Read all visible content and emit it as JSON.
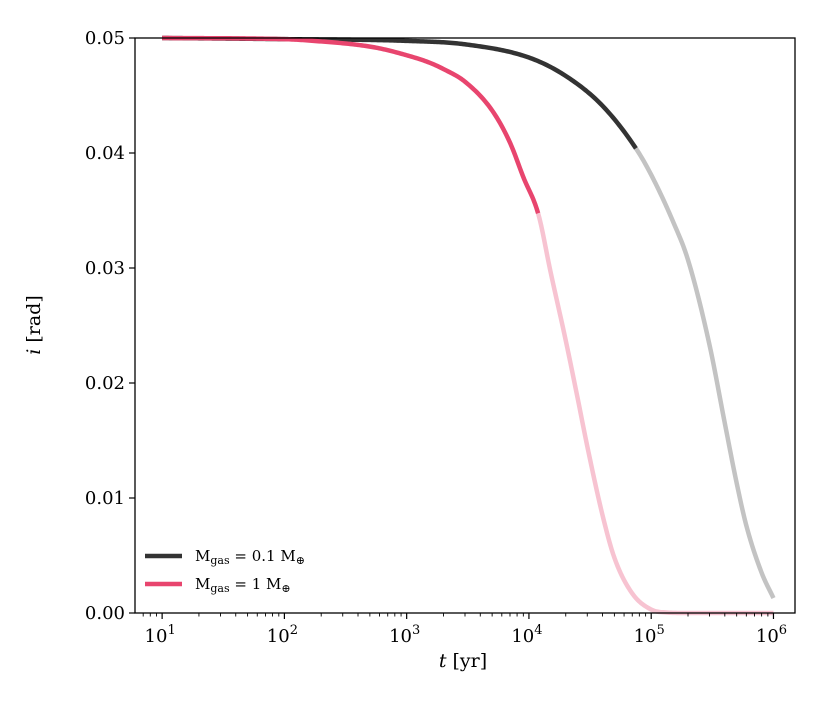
{
  "chart_data": {
    "type": "line",
    "xscale": "log",
    "xlim": [
      6,
      1500000
    ],
    "ylim": [
      0.0,
      0.05
    ],
    "x_ticks": [
      {
        "value": 10,
        "base": "10",
        "exp": "1"
      },
      {
        "value": 100,
        "base": "10",
        "exp": "2"
      },
      {
        "value": 1000,
        "base": "10",
        "exp": "3"
      },
      {
        "value": 10000,
        "base": "10",
        "exp": "4"
      },
      {
        "value": 100000,
        "base": "10",
        "exp": "5"
      },
      {
        "value": 1000000,
        "base": "10",
        "exp": "6"
      }
    ],
    "y_ticks": [
      {
        "value": 0.0,
        "label": "0.00"
      },
      {
        "value": 0.01,
        "label": "0.01"
      },
      {
        "value": 0.02,
        "label": "0.02"
      },
      {
        "value": 0.03,
        "label": "0.03"
      },
      {
        "value": 0.04,
        "label": "0.04"
      },
      {
        "value": 0.05,
        "label": "0.05"
      }
    ],
    "xlabel": {
      "var": "t",
      "unit": "[yr]"
    },
    "ylabel": {
      "var": "i",
      "unit": "[rad]"
    },
    "grid": false,
    "legend_position": "lower left",
    "series": [
      {
        "name": "Mgas = 0.1 M⊕",
        "legend": {
          "base": "M",
          "sub": "gas",
          "rest": " = 0.1 M",
          "sym": "⊕"
        },
        "color": "#333333",
        "faded_color": "#c3c3c3",
        "transition_x": 75000,
        "x": [
          10,
          100,
          1000,
          3000,
          10000,
          20000,
          40000,
          75000,
          100000,
          150000,
          200000,
          300000,
          400000,
          500000,
          600000,
          800000,
          1000000
        ],
        "y": [
          0.05,
          0.0499,
          0.04975,
          0.04945,
          0.0483,
          0.0467,
          0.0441,
          0.0404,
          0.0381,
          0.0341,
          0.0307,
          0.0233,
          0.0165,
          0.0113,
          0.0076,
          0.0035,
          0.0013
        ]
      },
      {
        "name": "Mgas = 1 M⊕",
        "legend": {
          "base": "M",
          "sub": "gas",
          "rest": " = 1 M",
          "sym": "⊕"
        },
        "color": "#e8456e",
        "faded_color": "#f7c3d1",
        "transition_x": 12000,
        "x": [
          10,
          100,
          200,
          400,
          600,
          1000,
          1500,
          2000,
          3000,
          5000,
          7000,
          9000,
          12000,
          15000,
          20000,
          25000,
          30000,
          40000,
          50000,
          70000,
          100000,
          130000,
          200000,
          1000000
        ],
        "y": [
          0.05,
          0.0499,
          0.0497,
          0.0494,
          0.0491,
          0.0485,
          0.0479,
          0.0473,
          0.0462,
          0.0437,
          0.0409,
          0.0379,
          0.0346,
          0.0297,
          0.0237,
          0.0187,
          0.0145,
          0.0085,
          0.0048,
          0.0017,
          0.0003,
          5e-05,
          0.0,
          0.0
        ]
      }
    ]
  }
}
